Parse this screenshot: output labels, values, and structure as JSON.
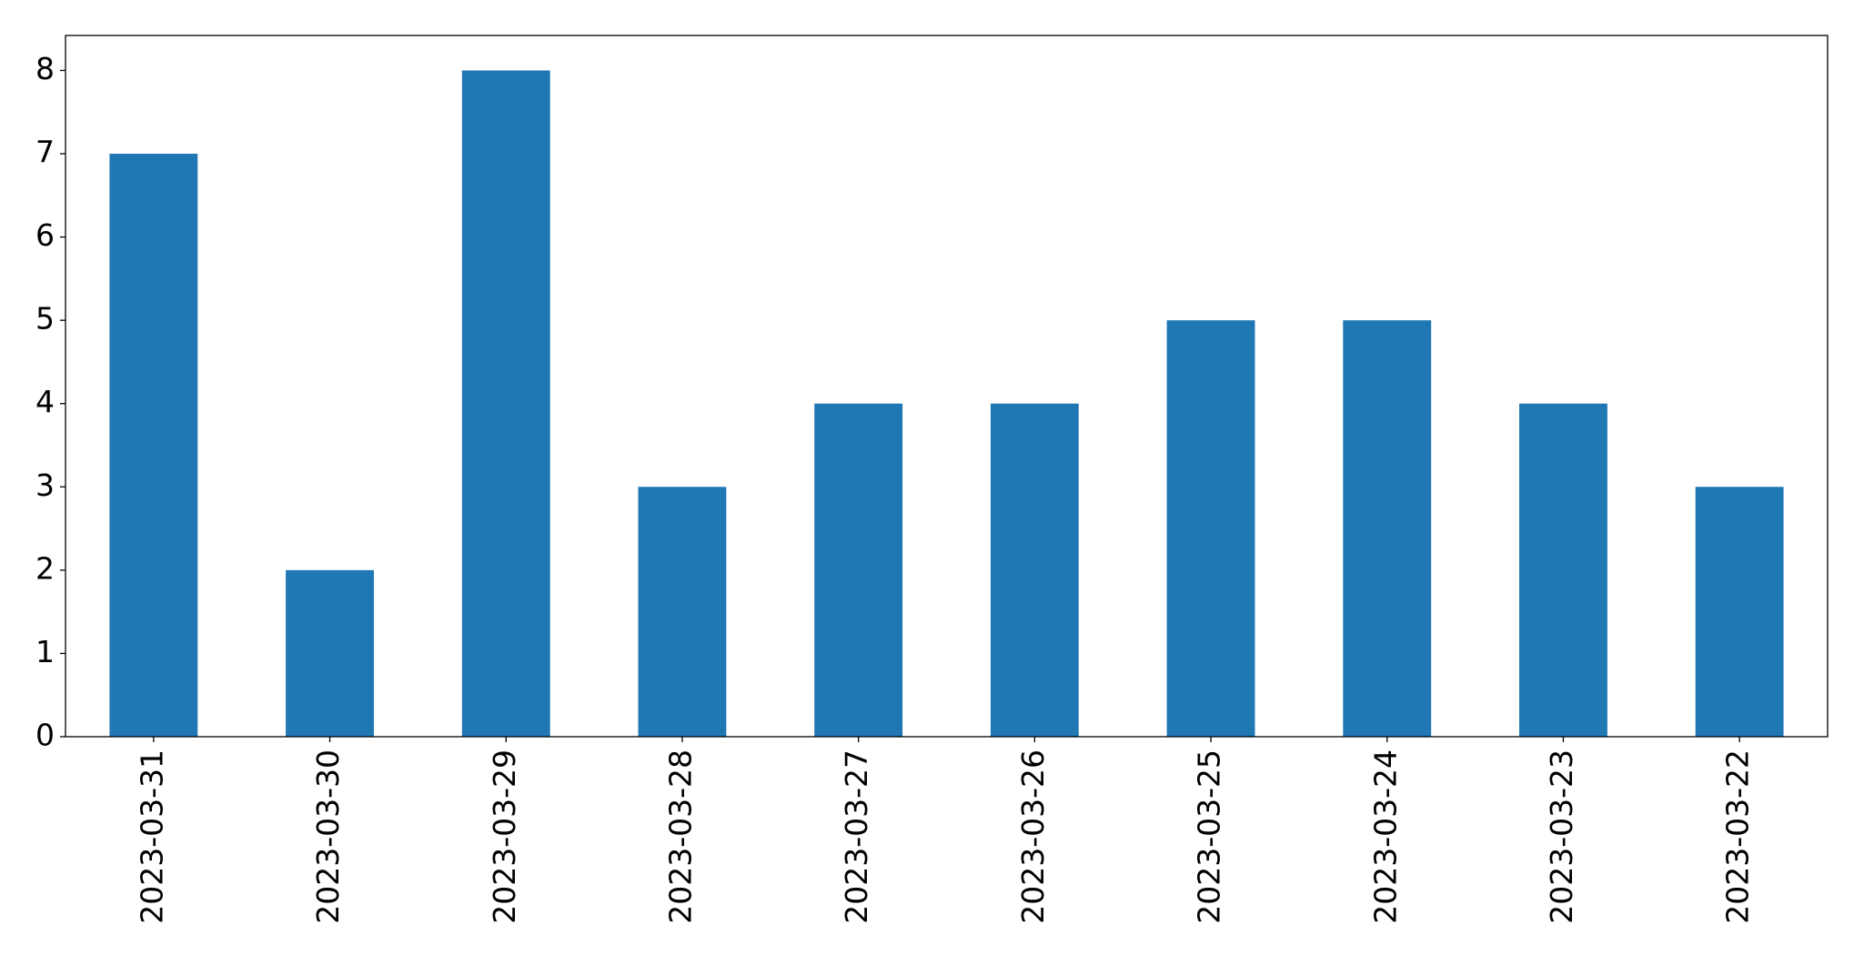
{
  "chart_data": {
    "type": "bar",
    "categories": [
      "2023-03-31",
      "2023-03-30",
      "2023-03-29",
      "2023-03-28",
      "2023-03-27",
      "2023-03-26",
      "2023-03-25",
      "2023-03-24",
      "2023-03-23",
      "2023-03-22"
    ],
    "values": [
      7,
      2,
      8,
      3,
      4,
      4,
      5,
      5,
      4,
      3
    ],
    "color": "#1f77b4",
    "ylim": [
      0,
      8.42
    ],
    "yticks": [
      0,
      1,
      2,
      3,
      4,
      5,
      6,
      7,
      8
    ],
    "grid": false
  }
}
